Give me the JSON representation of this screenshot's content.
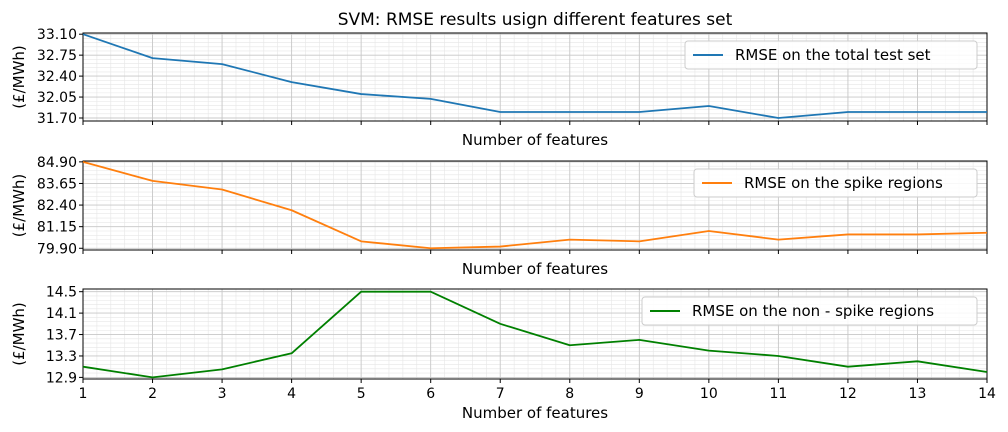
{
  "title": "SVM: RMSE results usign different features set",
  "chart_data": [
    {
      "type": "line",
      "ylabel": "(£/MWh)",
      "xlabel": "Number of features",
      "x": [
        1,
        2,
        3,
        4,
        5,
        6,
        7,
        8,
        9,
        10,
        11,
        12,
        13,
        14
      ],
      "xlim": [
        1,
        14
      ],
      "ylim": [
        31.65,
        33.12
      ],
      "yticks": [
        "31.70",
        "32.05",
        "32.40",
        "32.75",
        "33.10"
      ],
      "ytick_values": [
        31.7,
        32.05,
        32.4,
        32.75,
        33.1
      ],
      "show_xtick_labels": false,
      "grid": true,
      "legend": "top-right",
      "series": [
        {
          "name": "RMSE on the total test set",
          "color": "#1f77b4",
          "values": [
            33.1,
            32.7,
            32.6,
            32.3,
            32.1,
            32.02,
            31.8,
            31.8,
            31.8,
            31.9,
            31.7,
            31.8,
            31.8,
            31.8
          ]
        }
      ]
    },
    {
      "type": "line",
      "ylabel": "(£/MWh)",
      "xlabel": "Number of features",
      "x": [
        1,
        2,
        3,
        4,
        5,
        6,
        7,
        8,
        9,
        10,
        11,
        12,
        13,
        14
      ],
      "xlim": [
        1,
        14
      ],
      "ylim": [
        79.8,
        84.95
      ],
      "yticks": [
        "79.90",
        "81.15",
        "82.40",
        "83.65",
        "84.90"
      ],
      "ytick_values": [
        79.9,
        81.15,
        82.4,
        83.65,
        84.9
      ],
      "show_xtick_labels": false,
      "grid": true,
      "legend": "top-right",
      "series": [
        {
          "name": "RMSE on the spike regions",
          "color": "#ff7f0e",
          "values": [
            84.9,
            83.8,
            83.3,
            82.1,
            80.3,
            79.9,
            80.0,
            80.4,
            80.3,
            80.9,
            80.4,
            80.7,
            80.7,
            80.8
          ]
        }
      ]
    },
    {
      "type": "line",
      "ylabel": "(£/MWh)",
      "xlabel": "Number of features",
      "x": [
        1,
        2,
        3,
        4,
        5,
        6,
        7,
        8,
        9,
        10,
        11,
        12,
        13,
        14
      ],
      "xlim": [
        1,
        14
      ],
      "ylim": [
        12.87,
        14.55
      ],
      "yticks": [
        "12.9",
        "13.3",
        "13.7",
        "14.1",
        "14.5"
      ],
      "ytick_values": [
        12.9,
        13.3,
        13.7,
        14.1,
        14.5
      ],
      "xticks": [
        "1",
        "2",
        "3",
        "4",
        "5",
        "6",
        "7",
        "8",
        "9",
        "10",
        "11",
        "12",
        "13",
        "14"
      ],
      "show_xtick_labels": true,
      "grid": true,
      "legend": "top-right",
      "series": [
        {
          "name": "RMSE on the non - spike regions",
          "color": "#008000",
          "values": [
            13.1,
            12.9,
            13.05,
            13.35,
            14.5,
            14.5,
            13.9,
            13.5,
            13.6,
            13.4,
            13.3,
            13.1,
            13.2,
            13.0
          ]
        }
      ]
    }
  ]
}
